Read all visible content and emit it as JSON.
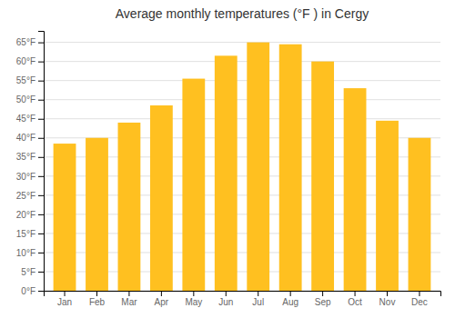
{
  "chart_data": {
    "type": "bar",
    "title": "Average monthly temperatures (°F ) in Cergy",
    "categories": [
      "Jan",
      "Feb",
      "Mar",
      "Apr",
      "May",
      "Jun",
      "Jul",
      "Aug",
      "Sep",
      "Oct",
      "Nov",
      "Dec"
    ],
    "values": [
      38.5,
      40.0,
      44.0,
      48.5,
      55.5,
      61.5,
      65.0,
      64.5,
      60.0,
      53.0,
      44.5,
      40.0
    ],
    "color": "#FFC020",
    "ylim": [
      0,
      68
    ],
    "yticks": [
      {
        "value": 0,
        "label": "0°F"
      },
      {
        "value": 5,
        "label": "5°F"
      },
      {
        "value": 10,
        "label": "10°F"
      },
      {
        "value": 15,
        "label": "15°F"
      },
      {
        "value": 20,
        "label": "20°F"
      },
      {
        "value": 25,
        "label": "25°F"
      },
      {
        "value": 30,
        "label": "30°F"
      },
      {
        "value": 35,
        "label": "35°F"
      },
      {
        "value": 40,
        "label": "40°F"
      },
      {
        "value": 45,
        "label": "45°F"
      },
      {
        "value": 50,
        "label": "50°F"
      },
      {
        "value": 55,
        "label": "55°F"
      },
      {
        "value": 60,
        "label": "60°F"
      },
      {
        "value": 65,
        "label": "65°F"
      }
    ],
    "grid": true
  }
}
